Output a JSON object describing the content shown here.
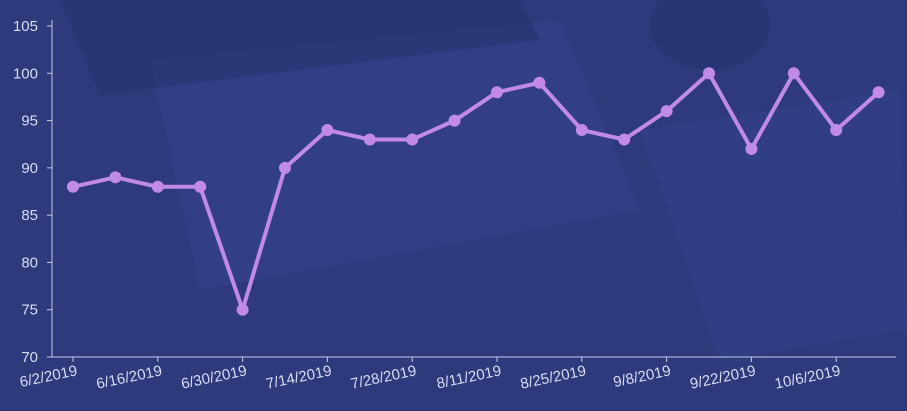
{
  "colors": {
    "background": "#2e3a7c",
    "background_shapes": "#34428a",
    "background_shapes_dark": "#283470",
    "axis": "#c4c8e6",
    "series": "#c08ae6",
    "tick_text": "#d8dcf3"
  },
  "chart_data": {
    "type": "line",
    "title": "",
    "xlabel": "",
    "ylabel": "",
    "ylim": [
      70,
      105
    ],
    "yticks": [
      70,
      75,
      80,
      85,
      90,
      95,
      100,
      105
    ],
    "x": [
      "6/2/2019",
      "6/9/2019",
      "6/16/2019",
      "6/23/2019",
      "6/30/2019",
      "7/7/2019",
      "7/14/2019",
      "7/21/2019",
      "7/28/2019",
      "8/4/2019",
      "8/11/2019",
      "8/18/2019",
      "8/25/2019",
      "9/1/2019",
      "9/8/2019",
      "9/15/2019",
      "9/22/2019",
      "9/29/2019",
      "10/6/2019",
      "10/13/2019"
    ],
    "x_tick_labels": [
      "6/2/2019",
      "6/16/2019",
      "6/30/2019",
      "7/14/2019",
      "7/28/2019",
      "8/11/2019",
      "8/25/2019",
      "9/8/2019",
      "9/22/2019",
      "10/6/2019"
    ],
    "series": [
      {
        "values": [
          88,
          89,
          88,
          88,
          75,
          90,
          94,
          93,
          93,
          95,
          98,
          99,
          94,
          93,
          96,
          100,
          92,
          100,
          94,
          98
        ]
      }
    ],
    "grid": false,
    "legend": "none"
  }
}
